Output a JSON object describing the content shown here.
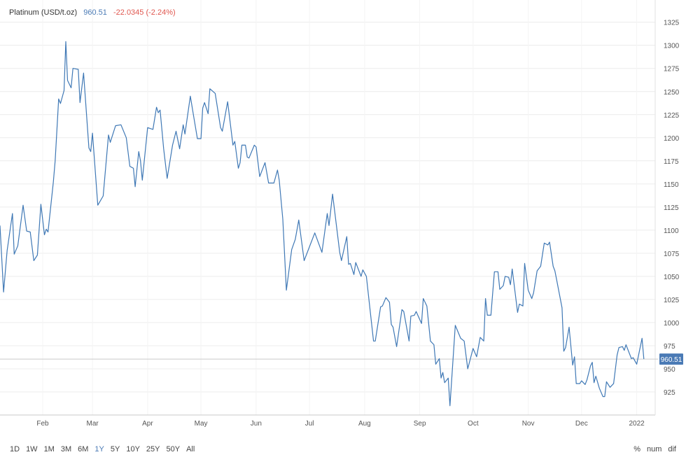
{
  "header": {
    "instrument": "Platinum (USD/t.oz)",
    "last": "960.51",
    "change": "-22.0345 (-2.24%)"
  },
  "colors": {
    "line": "#3f78b5",
    "last": "#4a7ab5",
    "change": "#e0574f",
    "badge": "#4a7ab5",
    "grid": "#ececec"
  },
  "ranges": {
    "items": [
      "1D",
      "1W",
      "1M",
      "3M",
      "6M",
      "1Y",
      "5Y",
      "10Y",
      "25Y",
      "50Y",
      "All"
    ],
    "active": "1Y"
  },
  "modes": {
    "items": [
      "%",
      "num",
      "dif"
    ]
  },
  "chart_data": {
    "type": "line",
    "title": "Platinum (USD/t.oz)",
    "xlabel": "",
    "ylabel": "",
    "x_unit": "day of year 2021",
    "xlim": [
      8,
      376
    ],
    "ylim": [
      900,
      1349
    ],
    "grid": true,
    "last_value": 960.51,
    "last_label": "960.51",
    "y_ticks": [
      925,
      950,
      975,
      1000,
      1025,
      1050,
      1075,
      1100,
      1125,
      1150,
      1175,
      1200,
      1225,
      1250,
      1275,
      1300,
      1325
    ],
    "x_ticks": [
      {
        "label": "Feb",
        "x": 32
      },
      {
        "label": "Mar",
        "x": 60
      },
      {
        "label": "Apr",
        "x": 91
      },
      {
        "label": "May",
        "x": 121
      },
      {
        "label": "Jun",
        "x": 152
      },
      {
        "label": "Jul",
        "x": 182
      },
      {
        "label": "Aug",
        "x": 213
      },
      {
        "label": "Sep",
        "x": 244
      },
      {
        "label": "Oct",
        "x": 274
      },
      {
        "label": "Nov",
        "x": 305
      },
      {
        "label": "Dec",
        "x": 335
      },
      {
        "label": "2022",
        "x": 366
      }
    ],
    "series": [
      {
        "name": "Platinum",
        "points": [
          [
            8,
            1105
          ],
          [
            10,
            1033
          ],
          [
            12,
            1078
          ],
          [
            15,
            1118
          ],
          [
            16,
            1074
          ],
          [
            18,
            1083
          ],
          [
            21,
            1127
          ],
          [
            23,
            1099
          ],
          [
            25,
            1098
          ],
          [
            27,
            1067
          ],
          [
            29,
            1073
          ],
          [
            31,
            1128
          ],
          [
            33,
            1095
          ],
          [
            34,
            1101
          ],
          [
            35,
            1098
          ],
          [
            38,
            1152
          ],
          [
            39,
            1175
          ],
          [
            41,
            1242
          ],
          [
            42,
            1237
          ],
          [
            44,
            1251
          ],
          [
            45,
            1304
          ],
          [
            46,
            1262
          ],
          [
            48,
            1254
          ],
          [
            49,
            1275
          ],
          [
            52,
            1274
          ],
          [
            53,
            1238
          ],
          [
            55,
            1270
          ],
          [
            58,
            1189
          ],
          [
            59,
            1185
          ],
          [
            60,
            1205
          ],
          [
            63,
            1127
          ],
          [
            66,
            1137
          ],
          [
            69,
            1203
          ],
          [
            70,
            1195
          ],
          [
            73,
            1213
          ],
          [
            76,
            1214
          ],
          [
            79,
            1200
          ],
          [
            81,
            1169
          ],
          [
            83,
            1167
          ],
          [
            84,
            1147
          ],
          [
            86,
            1185
          ],
          [
            87,
            1175
          ],
          [
            88,
            1154
          ],
          [
            91,
            1211
          ],
          [
            94,
            1209
          ],
          [
            96,
            1233
          ],
          [
            97,
            1227
          ],
          [
            98,
            1230
          ],
          [
            100,
            1188
          ],
          [
            102,
            1156
          ],
          [
            105,
            1192
          ],
          [
            107,
            1207
          ],
          [
            109,
            1188
          ],
          [
            111,
            1214
          ],
          [
            112,
            1204
          ],
          [
            115,
            1245
          ],
          [
            117,
            1222
          ],
          [
            119,
            1199
          ],
          [
            121,
            1199
          ],
          [
            122,
            1232
          ],
          [
            123,
            1238
          ],
          [
            125,
            1226
          ],
          [
            126,
            1253
          ],
          [
            129,
            1248
          ],
          [
            132,
            1211
          ],
          [
            133,
            1207
          ],
          [
            136,
            1239
          ],
          [
            139,
            1192
          ],
          [
            140,
            1196
          ],
          [
            142,
            1167
          ],
          [
            143,
            1173
          ],
          [
            144,
            1192
          ],
          [
            146,
            1192
          ],
          [
            147,
            1179
          ],
          [
            148,
            1178
          ],
          [
            151,
            1192
          ],
          [
            152,
            1190
          ],
          [
            154,
            1158
          ],
          [
            157,
            1173
          ],
          [
            159,
            1151
          ],
          [
            162,
            1151
          ],
          [
            164,
            1165
          ],
          [
            165,
            1154
          ],
          [
            167,
            1112
          ],
          [
            169,
            1035
          ],
          [
            172,
            1079
          ],
          [
            174,
            1090
          ],
          [
            176,
            1111
          ],
          [
            179,
            1067
          ],
          [
            185,
            1097
          ],
          [
            189,
            1076
          ],
          [
            192,
            1118
          ],
          [
            193,
            1105
          ],
          [
            195,
            1139
          ],
          [
            199,
            1076
          ],
          [
            200,
            1067
          ],
          [
            203,
            1093
          ],
          [
            204,
            1063
          ],
          [
            205,
            1064
          ],
          [
            207,
            1052
          ],
          [
            208,
            1065
          ],
          [
            211,
            1050
          ],
          [
            212,
            1057
          ],
          [
            214,
            1050
          ],
          [
            218,
            980
          ],
          [
            219,
            980
          ],
          [
            222,
            1017
          ],
          [
            223,
            1018
          ],
          [
            225,
            1027
          ],
          [
            227,
            1022
          ],
          [
            228,
            998
          ],
          [
            229,
            995
          ],
          [
            231,
            974
          ],
          [
            234,
            1014
          ],
          [
            235,
            1012
          ],
          [
            238,
            980
          ],
          [
            239,
            1007
          ],
          [
            241,
            1008
          ],
          [
            242,
            1012
          ],
          [
            245,
            999
          ],
          [
            246,
            1026
          ],
          [
            248,
            1018
          ],
          [
            250,
            980
          ],
          [
            252,
            976
          ],
          [
            253,
            955
          ],
          [
            255,
            961
          ],
          [
            256,
            940
          ],
          [
            257,
            946
          ],
          [
            258,
            935
          ],
          [
            260,
            940
          ],
          [
            261,
            910
          ],
          [
            264,
            997
          ],
          [
            267,
            983
          ],
          [
            269,
            980
          ],
          [
            271,
            950
          ],
          [
            274,
            972
          ],
          [
            276,
            963
          ],
          [
            278,
            984
          ],
          [
            280,
            980
          ],
          [
            281,
            1026
          ],
          [
            282,
            1008
          ],
          [
            284,
            1008
          ],
          [
            286,
            1055
          ],
          [
            288,
            1055
          ],
          [
            289,
            1036
          ],
          [
            291,
            1040
          ],
          [
            292,
            1050
          ],
          [
            294,
            1049
          ],
          [
            295,
            1041
          ],
          [
            296,
            1058
          ],
          [
            299,
            1011
          ],
          [
            300,
            1020
          ],
          [
            302,
            1018
          ],
          [
            303,
            1064
          ],
          [
            305,
            1035
          ],
          [
            307,
            1026
          ],
          [
            308,
            1032
          ],
          [
            310,
            1056
          ],
          [
            312,
            1061
          ],
          [
            314,
            1086
          ],
          [
            316,
            1084
          ],
          [
            317,
            1087
          ],
          [
            319,
            1061
          ],
          [
            320,
            1056
          ],
          [
            321,
            1046
          ],
          [
            324,
            1016
          ],
          [
            325,
            969
          ],
          [
            326,
            973
          ],
          [
            328,
            995
          ],
          [
            330,
            954
          ],
          [
            331,
            963
          ],
          [
            332,
            934
          ],
          [
            334,
            934
          ],
          [
            335,
            937
          ],
          [
            337,
            933
          ],
          [
            338,
            938
          ],
          [
            340,
            953
          ],
          [
            341,
            957
          ],
          [
            342,
            935
          ],
          [
            343,
            942
          ],
          [
            345,
            929
          ],
          [
            347,
            920
          ],
          [
            348,
            920
          ],
          [
            349,
            936
          ],
          [
            351,
            930
          ],
          [
            353,
            934
          ],
          [
            355,
            965
          ],
          [
            356,
            973
          ],
          [
            358,
            974
          ],
          [
            359,
            970
          ],
          [
            360,
            976
          ],
          [
            363,
            961
          ],
          [
            364,
            962
          ],
          [
            366,
            955
          ],
          [
            369,
            983
          ],
          [
            370,
            960.51
          ]
        ]
      }
    ]
  }
}
